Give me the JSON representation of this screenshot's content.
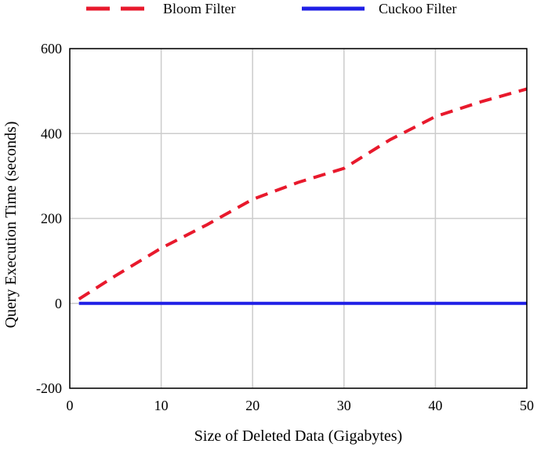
{
  "chart_data": {
    "type": "line",
    "title": "",
    "xlabel": "Size of Deleted Data (Gigabytes)",
    "ylabel": "Query Execution Time (seconds)",
    "xlim": [
      0,
      50
    ],
    "ylim": [
      -200,
      600
    ],
    "xticks": [
      0,
      10,
      20,
      30,
      40,
      50
    ],
    "yticks": [
      -200,
      0,
      200,
      400,
      600
    ],
    "grid": true,
    "legend_position": "top",
    "series": [
      {
        "name": "Bloom Filter",
        "color": "#e8192c",
        "style": "dashed",
        "x": [
          1,
          5,
          10,
          15,
          20,
          25,
          30,
          35,
          40,
          45,
          50
        ],
        "y": [
          10,
          65,
          130,
          185,
          245,
          285,
          318,
          385,
          440,
          475,
          505
        ]
      },
      {
        "name": "Cuckoo Filter",
        "color": "#1f1fe6",
        "style": "solid",
        "x": [
          1,
          50
        ],
        "y": [
          0,
          0
        ]
      }
    ]
  }
}
